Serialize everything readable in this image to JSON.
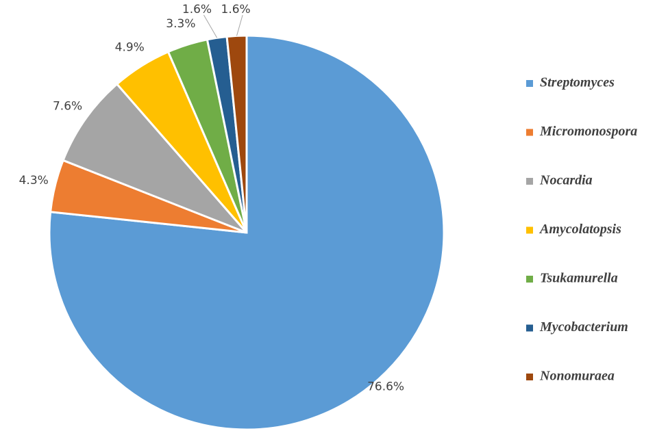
{
  "chart_data": {
    "type": "pie",
    "categories": [
      "Streptomyces",
      "Micromonospora",
      "Nocardia",
      "Amycolatopsis",
      "Tsukamurella",
      "Mycobacterium",
      "Nonomuraea"
    ],
    "values": [
      76.6,
      4.3,
      7.6,
      4.9,
      3.3,
      1.6,
      1.6
    ],
    "value_labels": [
      "76.6%",
      "4.3%",
      "7.6%",
      "4.9%",
      "3.3%",
      "1.6%",
      "1.6%"
    ],
    "colors": [
      "#5b9bd5",
      "#ed7d31",
      "#a5a5a5",
      "#ffc000",
      "#70ad47",
      "#255e91",
      "#9e480e"
    ],
    "legend": "right"
  }
}
